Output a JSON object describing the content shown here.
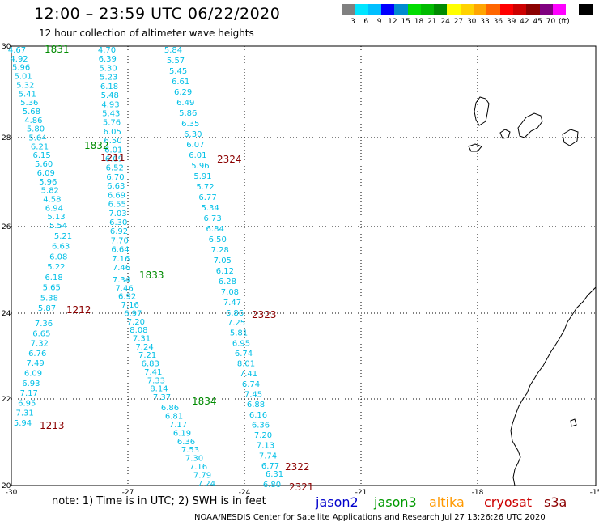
{
  "header": {
    "title": "12:00 – 23:59 UTC 06/22/2020",
    "subtitle": "12 hour collection of altimeter wave heights"
  },
  "scale": {
    "colors": [
      "#808080",
      "#00e5ff",
      "#00bfff",
      "#0000ff",
      "#008bd0",
      "#00dd00",
      "#00bb00",
      "#008b00",
      "#ffff00",
      "#ffd200",
      "#ffa500",
      "#ff6600",
      "#ff0000",
      "#cd0000",
      "#8b0000",
      "#800080",
      "#ff00ff",
      "#ffffff",
      "#000000"
    ],
    "labels": [
      "3",
      "6",
      "9",
      "12",
      "15",
      "18",
      "21",
      "24",
      "27",
      "30",
      "33",
      "36",
      "39",
      "42",
      "45",
      "70",
      "(ft)"
    ]
  },
  "axes": {
    "x_ticks": [
      "-30",
      "-27",
      "-24",
      "-21",
      "-18",
      "-15"
    ],
    "y_ticks": [
      "30",
      "28",
      "26",
      "24",
      "22",
      "20"
    ]
  },
  "tracks": [
    {
      "id": "1831",
      "label_color": "#008b00",
      "values": [
        "4.67",
        "4.92",
        "5.96",
        "5.01",
        "5.32",
        "5.41",
        "5.36",
        "5.68",
        "4.86",
        "5.80",
        "5.64",
        "6.21",
        "6.15",
        "5.60",
        "6.09",
        "5.96",
        "5.82",
        "4.58",
        "6.94",
        "5.13",
        "5.54"
      ]
    },
    {
      "id": "1832",
      "label_color": "#008b00",
      "values": [
        "4.70",
        "6.39",
        "5.30",
        "5.23",
        "6.18",
        "5.48",
        "4.93",
        "5.43",
        "5.76",
        "6.05",
        "6.50",
        "6.01",
        "6.09",
        "6.52",
        "6.70",
        "6.63",
        "6.69",
        "6.55",
        "7.03",
        "6.30",
        "6.92",
        "7.70",
        "6.64",
        "7.16",
        "7.46"
      ]
    },
    {
      "id": "1833",
      "label_color": "#008b00",
      "values": [
        "7.34",
        "7.46",
        "6.92",
        "7.16",
        "6.97",
        "7.20",
        "8.08",
        "7.31",
        "7.24",
        "7.21",
        "6.83",
        "7.41",
        "7.33",
        "8.14",
        "7.37"
      ]
    },
    {
      "id": "1834",
      "label_color": "#008b00",
      "values": [
        "6.86",
        "6.81",
        "7.17",
        "6.19",
        "6.36",
        "7.53",
        "7.30",
        "7.16",
        "7.79",
        "7.24"
      ]
    },
    {
      "id": "1211",
      "label_color": "#8b0000",
      "values": []
    },
    {
      "id": "1212",
      "label_color": "#8b0000",
      "values": [
        "5.21",
        "6.63",
        "6.08",
        "5.22",
        "6.18",
        "5.65",
        "5.38",
        "5.87"
      ]
    },
    {
      "id": "1213",
      "label_color": "#8b0000",
      "values": [
        "7.36",
        "6.65",
        "7.32",
        "6.76",
        "7.49",
        "6.09",
        "6.93",
        "7.17",
        "6.95",
        "7.31",
        "5.94"
      ]
    },
    {
      "id": "2324",
      "label_color": "#8b0000",
      "values": [
        "5.84",
        "5.57",
        "5.45",
        "6.61",
        "6.29",
        "6.49",
        "5.86",
        "6.35",
        "6.30",
        "6.07",
        "6.01",
        "5.96",
        "5.91",
        "5.72",
        "6.77",
        "5.34",
        "6.73",
        "6.84",
        "6.50",
        "7.28",
        "7.05",
        "6.12",
        "6.28",
        "7.08",
        "7.47",
        "6.86"
      ]
    },
    {
      "id": "2323",
      "label_color": "#8b0000",
      "values": [
        "7.25",
        "5.81",
        "6.95",
        "6.74",
        "8.01",
        "7.41",
        "6.74",
        "7.45",
        "6.88",
        "6.16",
        "6.36",
        "7.20",
        "7.13",
        "7.74",
        "6.77"
      ]
    },
    {
      "id": "2322",
      "label_color": "#8b0000",
      "values": [
        "6.31",
        "6.80"
      ]
    },
    {
      "id": "2321",
      "label_color": "#8b0000",
      "values": []
    }
  ],
  "footer": {
    "note": "note: 1) Time is in UTC; 2) SWH is in feet",
    "credit": "NOAA/NESDIS Center for Satellite Applications and Research   Jul 27 13:26:26 UTC 2020"
  },
  "legend": [
    {
      "name": "jason2",
      "color": "#0000cc"
    },
    {
      "name": "jason3",
      "color": "#009900"
    },
    {
      "name": "altika",
      "color": "#ff9900"
    },
    {
      "name": "cryosat",
      "color": "#cc0000"
    },
    {
      "name": "s3a",
      "color": "#8b0000"
    }
  ]
}
